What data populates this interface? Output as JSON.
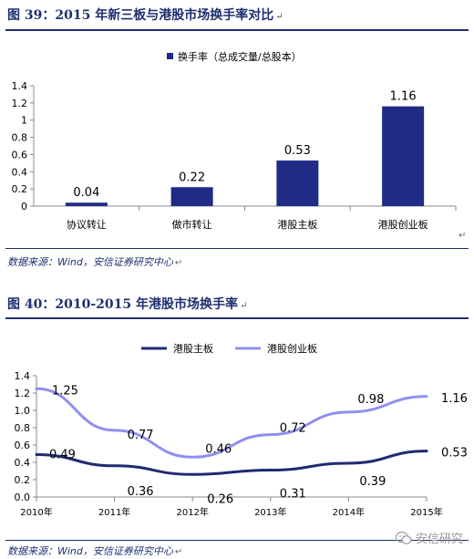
{
  "figure1": {
    "title": "图 39：2015 年新三板与港股市场换手率对比",
    "source": "数据来源：Wind，安信证券研究中心",
    "chart_data": {
      "type": "bar",
      "legend": [
        "换手率（总成交量/总股本）"
      ],
      "legend_position": "top-center",
      "categories": [
        "协议转让",
        "做市转让",
        "港股主板",
        "港股创业板"
      ],
      "series": [
        {
          "name": "换手率（总成交量/总股本）",
          "values": [
            0.04,
            0.22,
            0.53,
            1.16
          ]
        }
      ],
      "value_labels": [
        "0.04",
        "0.22",
        "0.53",
        "1.16"
      ],
      "ylim": [
        0,
        1.4
      ],
      "yticks": [
        "0",
        "0.2",
        "0.4",
        "0.6",
        "0.8",
        "1",
        "1.2",
        "1.4"
      ],
      "color": "#1f2b85",
      "grid": false
    }
  },
  "figure2": {
    "title": "图 40：2010-2015 年港股市场换手率",
    "source": "数据来源：Wind，安信证券研究中心",
    "chart_data": {
      "type": "line",
      "x": [
        "2010年",
        "2011年",
        "2012年",
        "2013年",
        "2014年",
        "2015年"
      ],
      "series": [
        {
          "name": "港股主板",
          "values": [
            0.49,
            0.36,
            0.26,
            0.31,
            0.39,
            0.53
          ],
          "labels": [
            "0.49",
            "0.36",
            "0.26",
            "0.31",
            "0.39",
            "0.53"
          ],
          "color": "#1f2b70"
        },
        {
          "name": "港股创业板",
          "values": [
            1.25,
            0.77,
            0.46,
            0.72,
            0.98,
            1.16
          ],
          "labels": [
            "1.25",
            "0.77",
            "0.46",
            "0.72",
            "0.98",
            "1.16"
          ],
          "color": "#8f8ff0"
        }
      ],
      "legend_position": "top-center",
      "ylim": [
        0,
        1.4
      ],
      "yticks": [
        "0.0",
        "0.2",
        "0.4",
        "0.6",
        "0.8",
        "1.0",
        "1.2",
        "1.4"
      ],
      "grid": false
    }
  },
  "watermark": {
    "text": "安信研究",
    "icon": "wechat-icon"
  }
}
